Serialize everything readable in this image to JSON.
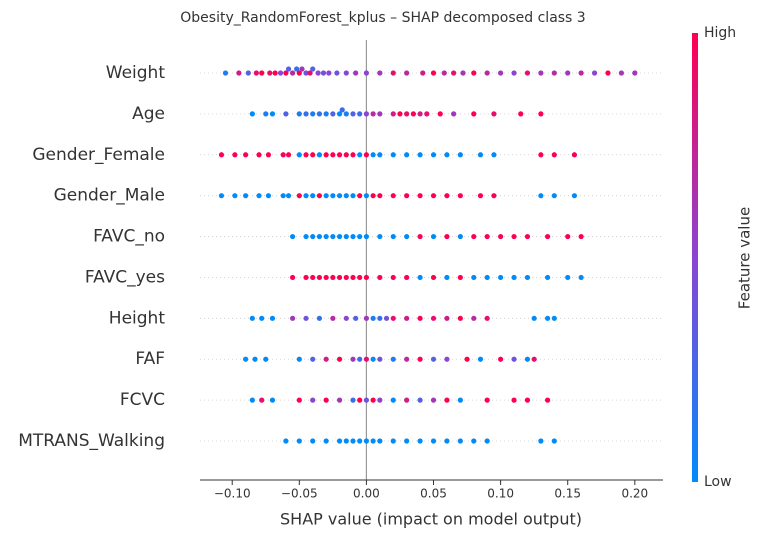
{
  "chart_data": {
    "type": "beeswarm",
    "title": "Obesity_RandomForest_kplus – SHAP decomposed class 3",
    "xlabel": "SHAP value (impact on model output)",
    "colorbar_label": "Feature value",
    "colorbar_high": "High",
    "colorbar_low": "Low",
    "colormap": [
      "#008bfb",
      "#8a45d3",
      "#ff0051"
    ],
    "xlim": [
      -0.124,
      0.221
    ],
    "xticks": [
      {
        "value": -0.1,
        "label": "−0.10"
      },
      {
        "value": -0.05,
        "label": "−0.05"
      },
      {
        "value": 0,
        "label": "0.00"
      },
      {
        "value": 0.05,
        "label": "0.05"
      },
      {
        "value": 0.1,
        "label": "0.10"
      },
      {
        "value": 0.15,
        "label": "0.15"
      },
      {
        "value": 0.2,
        "label": "0.20"
      }
    ],
    "features": [
      {
        "name": "Weight",
        "values": [
          -0.105,
          -0.095,
          -0.088,
          -0.082,
          -0.078,
          -0.072,
          -0.068,
          -0.064,
          -0.06,
          -0.058,
          -0.055,
          -0.052,
          -0.05,
          -0.048,
          -0.045,
          -0.042,
          -0.04,
          -0.036,
          -0.032,
          -0.028,
          -0.022,
          -0.015,
          -0.008,
          0.0,
          0.01,
          0.02,
          0.03,
          0.042,
          0.05,
          0.058,
          0.065,
          0.072,
          0.08,
          0.09,
          0.1,
          0.11,
          0.12,
          0.13,
          0.14,
          0.15,
          0.16,
          0.17,
          0.18,
          0.19,
          0.2
        ],
        "feature_values": [
          0.1,
          0.8,
          0.3,
          0.9,
          1,
          0.9,
          1,
          0.5,
          1,
          0.3,
          0.7,
          0.2,
          1,
          0.6,
          0.4,
          0.9,
          0.3,
          0.5,
          0.4,
          0.5,
          0.4,
          0.5,
          0.6,
          0.5,
          0.6,
          0.9,
          0.7,
          0.8,
          1,
          0.7,
          0.9,
          0.6,
          1,
          0.7,
          0.6,
          0.5,
          0.9,
          0.6,
          0.7,
          0.6,
          0.7,
          0.5,
          1,
          0.6,
          0.6
        ]
      },
      {
        "name": "Age",
        "values": [
          -0.085,
          -0.075,
          -0.07,
          -0.06,
          -0.05,
          -0.045,
          -0.04,
          -0.035,
          -0.03,
          -0.025,
          -0.02,
          -0.018,
          -0.015,
          -0.01,
          -0.005,
          0.0,
          0.005,
          0.01,
          0.02,
          0.025,
          0.03,
          0.035,
          0.04,
          0.045,
          0.055,
          0.065,
          0.08,
          0.095,
          0.115,
          0.13
        ],
        "feature_values": [
          0,
          0.1,
          0,
          0.3,
          0.1,
          0.2,
          0.1,
          0.2,
          0.1,
          0.3,
          0,
          0.2,
          0.1,
          0.3,
          0.2,
          0.5,
          0.7,
          0.6,
          0.8,
          1,
          0.9,
          1,
          0.8,
          0.9,
          1,
          0.6,
          1,
          0.9,
          1,
          1
        ]
      },
      {
        "name": "Gender_Female",
        "values": [
          -0.108,
          -0.098,
          -0.09,
          -0.08,
          -0.073,
          -0.062,
          -0.058,
          -0.05,
          -0.045,
          -0.04,
          -0.035,
          -0.03,
          -0.025,
          -0.02,
          -0.015,
          -0.01,
          -0.005,
          0.0,
          0.005,
          0.01,
          0.02,
          0.03,
          0.04,
          0.05,
          0.06,
          0.07,
          0.085,
          0.095,
          0.13,
          0.14,
          0.155
        ],
        "feature_values": [
          1,
          1,
          1,
          1,
          1,
          1,
          1,
          0,
          1,
          1,
          0,
          1,
          1,
          1,
          1,
          1,
          0,
          1,
          0,
          0,
          0,
          0,
          0,
          0,
          0,
          0,
          0,
          0,
          1,
          1,
          1
        ]
      },
      {
        "name": "Gender_Male",
        "values": [
          -0.108,
          -0.098,
          -0.09,
          -0.08,
          -0.073,
          -0.062,
          -0.058,
          -0.05,
          -0.045,
          -0.04,
          -0.035,
          -0.03,
          -0.025,
          -0.02,
          -0.015,
          -0.01,
          -0.005,
          0.0,
          0.005,
          0.01,
          0.02,
          0.03,
          0.04,
          0.05,
          0.06,
          0.07,
          0.085,
          0.095,
          0.13,
          0.14,
          0.155
        ],
        "feature_values": [
          0,
          0,
          0,
          0,
          0,
          0,
          0,
          1,
          0,
          0,
          1,
          0,
          0,
          0,
          0,
          0,
          1,
          0,
          1,
          1,
          1,
          1,
          1,
          1,
          1,
          1,
          1,
          1,
          0,
          0,
          0
        ]
      },
      {
        "name": "FAVC_no",
        "values": [
          -0.055,
          -0.045,
          -0.04,
          -0.035,
          -0.03,
          -0.025,
          -0.02,
          -0.015,
          -0.01,
          -0.005,
          0.0,
          0.01,
          0.02,
          0.03,
          0.04,
          0.05,
          0.06,
          0.07,
          0.08,
          0.09,
          0.1,
          0.11,
          0.12,
          0.135,
          0.15,
          0.16
        ],
        "feature_values": [
          0,
          0,
          0,
          0,
          0,
          0,
          0,
          0,
          0,
          0,
          0,
          0,
          0,
          0,
          1,
          0,
          1,
          0,
          1,
          1,
          1,
          1,
          1,
          1,
          1,
          1
        ]
      },
      {
        "name": "FAVC_yes",
        "values": [
          -0.055,
          -0.045,
          -0.04,
          -0.035,
          -0.03,
          -0.025,
          -0.02,
          -0.015,
          -0.01,
          -0.005,
          0.0,
          0.01,
          0.02,
          0.03,
          0.04,
          0.05,
          0.06,
          0.07,
          0.08,
          0.09,
          0.1,
          0.11,
          0.12,
          0.135,
          0.15,
          0.16
        ],
        "feature_values": [
          1,
          1,
          1,
          1,
          1,
          1,
          1,
          1,
          1,
          1,
          1,
          1,
          1,
          1,
          0,
          1,
          0,
          1,
          0,
          0,
          0,
          0,
          0,
          0,
          0,
          0
        ]
      },
      {
        "name": "Height",
        "values": [
          -0.085,
          -0.078,
          -0.07,
          -0.055,
          -0.045,
          -0.035,
          -0.025,
          -0.015,
          -0.008,
          0.0,
          0.005,
          0.01,
          0.015,
          0.02,
          0.03,
          0.04,
          0.05,
          0.06,
          0.07,
          0.08,
          0.09,
          0.125,
          0.135,
          0.14
        ],
        "feature_values": [
          0,
          0,
          0,
          0.6,
          0.4,
          0.2,
          0.7,
          0.5,
          0.3,
          0.6,
          0.1,
          0.2,
          0.4,
          0.9,
          0.8,
          1,
          0.9,
          0.8,
          1,
          0.7,
          0.9,
          0,
          0,
          0
        ]
      },
      {
        "name": "FAF",
        "values": [
          -0.09,
          -0.083,
          -0.075,
          -0.05,
          -0.04,
          -0.03,
          -0.02,
          -0.01,
          -0.005,
          0.0,
          0.005,
          0.01,
          0.02,
          0.03,
          0.04,
          0.05,
          0.06,
          0.075,
          0.085,
          0.1,
          0.11,
          0.12,
          0.125
        ],
        "feature_values": [
          0,
          0,
          0,
          0,
          0.3,
          0.8,
          1,
          0.6,
          0.2,
          0.9,
          0,
          0.4,
          0.1,
          0.7,
          1,
          0.3,
          0.5,
          1,
          0,
          1,
          0.4,
          0,
          0.9
        ]
      },
      {
        "name": "FCVC",
        "values": [
          -0.085,
          -0.078,
          -0.07,
          -0.05,
          -0.04,
          -0.03,
          -0.02,
          -0.01,
          -0.005,
          0.0,
          0.005,
          0.01,
          0.02,
          0.03,
          0.04,
          0.05,
          0.06,
          0.07,
          0.09,
          0.11,
          0.12,
          0.135
        ],
        "feature_values": [
          0,
          0.9,
          0,
          1,
          0.5,
          1,
          0.6,
          0.2,
          1,
          0.4,
          1,
          0.5,
          0,
          0.8,
          0.3,
          0.6,
          1,
          0,
          1,
          1,
          1,
          1
        ]
      },
      {
        "name": "MTRANS_Walking",
        "values": [
          -0.06,
          -0.05,
          -0.04,
          -0.03,
          -0.02,
          -0.015,
          -0.01,
          -0.005,
          0.0,
          0.005,
          0.01,
          0.02,
          0.03,
          0.04,
          0.05,
          0.06,
          0.07,
          0.08,
          0.09,
          0.13,
          0.14
        ],
        "feature_values": [
          0,
          0,
          0,
          0,
          0,
          0,
          0,
          0,
          0,
          0,
          0,
          0,
          0,
          0,
          0,
          0,
          0,
          0,
          0,
          0,
          0
        ]
      }
    ]
  }
}
